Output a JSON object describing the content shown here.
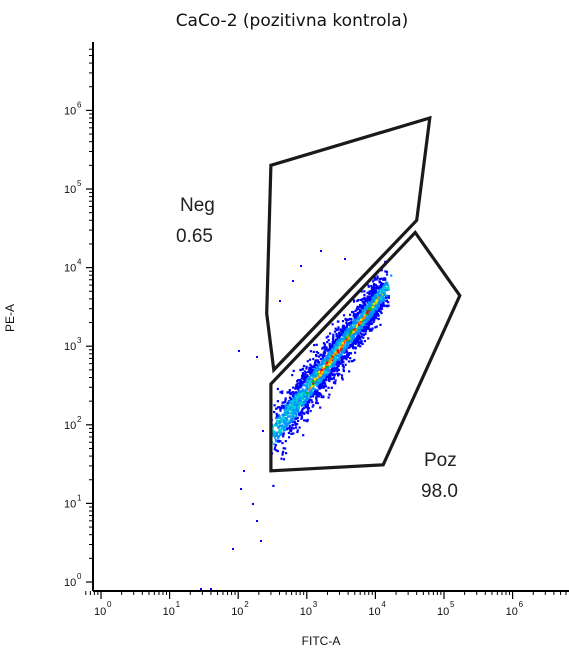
{
  "chart_data": {
    "type": "scatter",
    "title": "CaCo-2 (pozitivna kontrola)",
    "xlabel": "FITC-A",
    "ylabel": "PE-A",
    "x_scale": "log",
    "y_scale": "log",
    "xlim": [
      0.6,
      8000000
    ],
    "ylim": [
      0.8,
      2500000
    ],
    "x_ticks": [
      {
        "base": "10",
        "exp": "0",
        "value": 1
      },
      {
        "base": "10",
        "exp": "1",
        "value": 10
      },
      {
        "base": "10",
        "exp": "2",
        "value": 100
      },
      {
        "base": "10",
        "exp": "3",
        "value": 1000
      },
      {
        "base": "10",
        "exp": "4",
        "value": 10000
      },
      {
        "base": "10",
        "exp": "5",
        "value": 100000
      },
      {
        "base": "10",
        "exp": "6",
        "value": 1000000
      }
    ],
    "y_ticks": [
      {
        "base": "10",
        "exp": "0",
        "value": 1
      },
      {
        "base": "10",
        "exp": "1",
        "value": 10
      },
      {
        "base": "10",
        "exp": "2",
        "value": 100
      },
      {
        "base": "10",
        "exp": "3",
        "value": 1000
      },
      {
        "base": "10",
        "exp": "4",
        "value": 10000
      },
      {
        "base": "10",
        "exp": "5",
        "value": 100000
      },
      {
        "base": "10",
        "exp": "6",
        "value": 1000000
      }
    ],
    "gates": [
      {
        "name": "Neg",
        "percent": "0.65",
        "vertices": [
          [
            300,
            200000
          ],
          [
            62000,
            800000
          ],
          [
            40000,
            40000
          ],
          [
            330,
            500
          ],
          [
            260,
            2600
          ]
        ]
      },
      {
        "name": "Poz",
        "percent": "98.0",
        "vertices": [
          [
            300,
            330
          ],
          [
            38000,
            28000
          ],
          [
            170000,
            4400
          ],
          [
            13000,
            31
          ],
          [
            300,
            26
          ]
        ]
      }
    ],
    "density_colors": [
      "#0000ff",
      "#0090ff",
      "#00d0d0",
      "#00c000",
      "#ffe000",
      "#ff8000",
      "#ff0000"
    ],
    "grid": false,
    "legend": "none"
  }
}
